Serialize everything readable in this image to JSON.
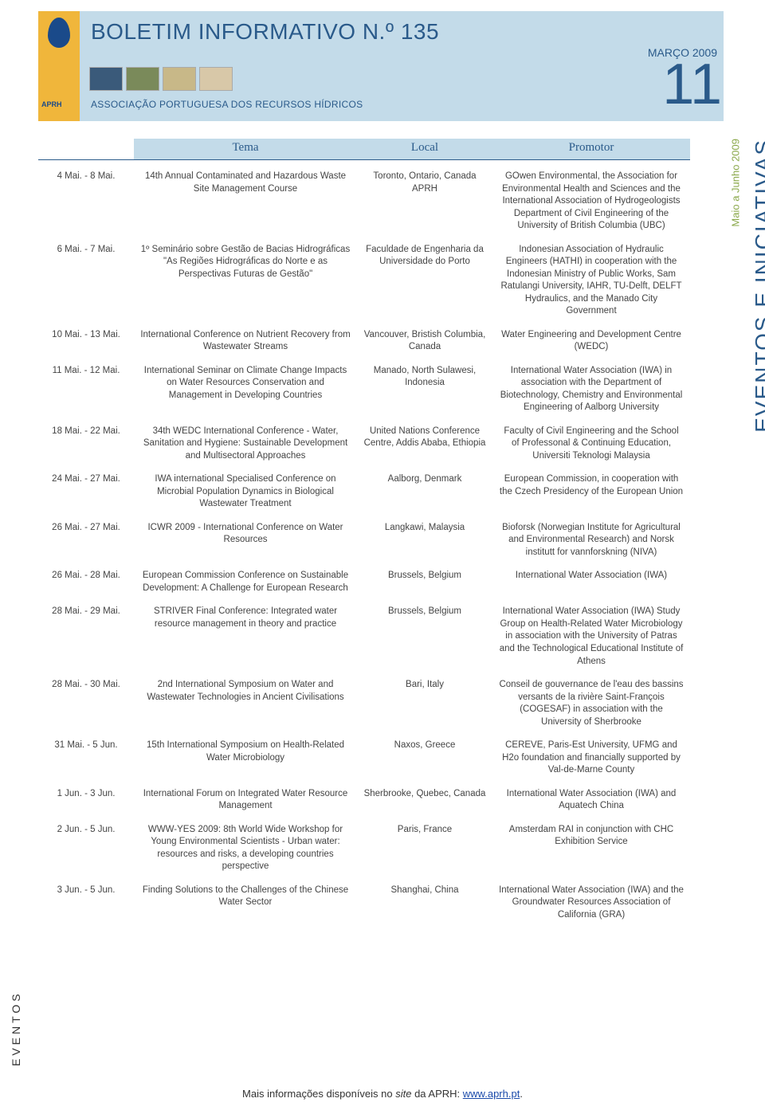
{
  "header": {
    "title": "BOLETIM INFORMATIVO N.º 135",
    "date": "MARÇO 2009",
    "page": "11",
    "subtitle": "ASSOCIAÇÃO PORTUGUESA DOS RECURSOS HÍDRICOS",
    "logo_text": "APRH"
  },
  "thumbs": [
    {
      "bg": "#3a5a7a"
    },
    {
      "bg": "#7a8a5a"
    },
    {
      "bg": "#c8b888"
    },
    {
      "bg": "#d8c8a8"
    }
  ],
  "columns": {
    "c0": "",
    "c1": "Tema",
    "c2": "Local",
    "c3": "Promotor"
  },
  "side_right": "EVENTOS E INICIATIVAS",
  "side_right_sub": "Maio a Junho 2009",
  "side_left": "EVENTOS",
  "footer": {
    "text": "Mais informações disponíveis no ",
    "site_word": "site",
    "text2": " da APRH: ",
    "link": "www.aprh.pt",
    "suffix": "."
  },
  "rows": [
    {
      "date": "4 Mai. - 8 Mai.",
      "tema": "14th Annual Contaminated and Hazardous Waste Site Management Course",
      "local": "Toronto, Ontario, Canada APRH",
      "promo": "GOwen Environmental, the Association for Environmental Health and Sciences and the International Association of Hydrogeologists Department of Civil Engineering of the University of British Columbia (UBC)"
    },
    {
      "date": "6 Mai. - 7 Mai.",
      "tema": "1º Seminário sobre Gestão de Bacias Hidrográficas \"As Regiões Hidrográficas do Norte e as Perspectivas Futuras de Gestão\"",
      "local": "Faculdade de Engenharia da Universidade do Porto",
      "promo": "Indonesian Association of Hydraulic Engineers (HATHI) in cooperation with the Indonesian Ministry of Public Works, Sam Ratulangi University, IAHR, TU-Delft, DELFT Hydraulics, and the Manado City Government"
    },
    {
      "date": "10 Mai. - 13 Mai.",
      "tema": "International Conference on Nutrient Recovery from Wastewater Streams",
      "local": "Vancouver, Bristish Columbia, Canada",
      "promo": "Water Engineering and Development Centre (WEDC)"
    },
    {
      "date": "11 Mai. - 12 Mai.",
      "tema": "International Seminar on Climate Change Impacts on Water Resources Conservation and Management in Developing Countries",
      "local": "Manado, North Sulawesi, Indonesia",
      "promo": "International Water Association (IWA) in association with the Department of Biotechnology, Chemistry and Environmental Engineering of Aalborg University"
    },
    {
      "date": "18 Mai. - 22 Mai.",
      "tema": "34th WEDC International Conference - Water, Sanitation and Hygiene: Sustainable Development and Multisectoral Approaches",
      "local": "United Nations Conference Centre, Addis Ababa, Ethiopia",
      "promo": "Faculty of Civil Engineering and the School of Professonal & Continuing Education, Universiti Teknologi Malaysia"
    },
    {
      "date": "24 Mai. - 27 Mai.",
      "tema": "IWA international Specialised Conference on Microbial Population Dynamics in Biological Wastewater Treatment",
      "local": "Aalborg, Denmark",
      "promo": "European Commission, in cooperation with the Czech Presidency of the European Union"
    },
    {
      "date": "26 Mai. - 27 Mai.",
      "tema": "ICWR 2009 - International Conference on Water Resources",
      "local": "Langkawi, Malaysia",
      "promo": "Bioforsk (Norwegian Institute for Agricultural and Environmental Research) and Norsk institutt for vannforskning (NIVA)"
    },
    {
      "date": "26 Mai. - 28 Mai.",
      "tema": "European Commission Conference on Sustainable Development: A Challenge for European Research",
      "local": "Brussels, Belgium",
      "promo": "International Water Association (IWA)"
    },
    {
      "date": "28 Mai. - 29 Mai.",
      "tema": "STRIVER Final Conference: Integrated water resource management in theory and practice",
      "local": "Brussels, Belgium",
      "promo": "International Water Association (IWA) Study Group on Health-Related Water Microbiology in association with the University of Patras and the Technological Educational Institute of Athens"
    },
    {
      "date": "28 Mai. - 30 Mai.",
      "tema": "2nd International Symposium on Water and Wastewater Technologies in Ancient Civilisations",
      "local": "Bari, Italy",
      "promo": "Conseil de gouvernance de l'eau des bassins versants de la rivière Saint-François (COGESAF) in association with the University of Sherbrooke"
    },
    {
      "date": "31 Mai. - 5 Jun.",
      "tema": "15th International Symposium on Health-Related Water Microbiology",
      "local": "Naxos, Greece",
      "promo": "CEREVE, Paris-Est University, UFMG and H2o foundation and financially supported by Val-de-Marne County"
    },
    {
      "date": "1 Jun. - 3 Jun.",
      "tema": "International Forum on Integrated Water Resource Management",
      "local": "Sherbrooke, Quebec, Canada",
      "promo": "International Water Association (IWA) and Aquatech China"
    },
    {
      "date": "2 Jun. - 5 Jun.",
      "tema": "WWW-YES 2009: 8th World Wide Workshop for Young Environmental Scientists - Urban water: resources and risks, a developing countries perspective",
      "local": "Paris, France",
      "promo": "Amsterdam RAI in conjunction with CHC Exhibition Service"
    },
    {
      "date": "3 Jun. - 5 Jun.",
      "tema": "Finding Solutions to the Challenges of the Chinese Water Sector",
      "local": "Shanghai, China",
      "promo": "International Water Association (IWA) and the Groundwater Resources Association of California (GRA)"
    }
  ]
}
